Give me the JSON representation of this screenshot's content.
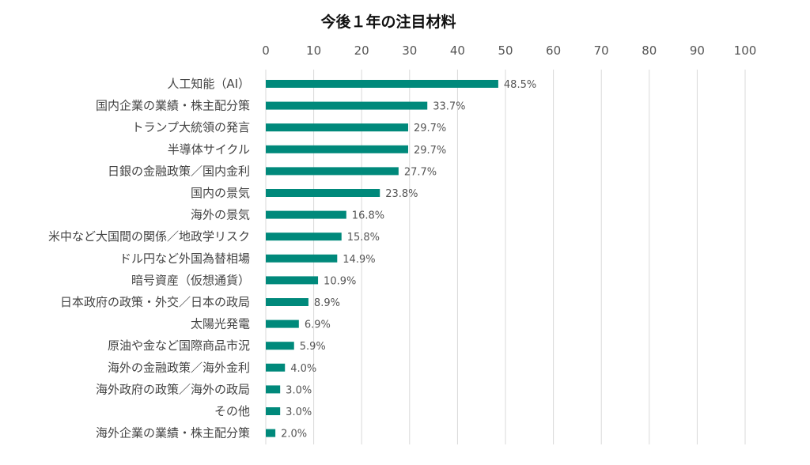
{
  "chart_data": {
    "type": "bar",
    "orientation": "horizontal",
    "title": "今後１年の注目材料",
    "xlabel": "",
    "ylabel": "",
    "xlim": [
      0,
      100
    ],
    "x_ticks": [
      "0",
      "10",
      "20",
      "30",
      "40",
      "50",
      "60",
      "70",
      "80",
      "90",
      "100"
    ],
    "x_tick_values": [
      0,
      10,
      20,
      30,
      40,
      50,
      60,
      70,
      80,
      90,
      100
    ],
    "grid": true,
    "legend": "none",
    "bar_color": "#00897B",
    "categories": [
      "人工知能（AI）",
      "国内企業の業績・株主配分策",
      "トランプ大統領の発言",
      "半導体サイクル",
      "日銀の金融政策／国内金利",
      "国内の景気",
      "海外の景気",
      "米中など大国間の関係／地政学リスク",
      "ドル円など外国為替相場",
      "暗号資産（仮想通貨）",
      "日本政府の政策・外交／日本の政局",
      "太陽光発電",
      "原油や金など国際商品市況",
      "海外の金融政策／海外金利",
      "海外政府の政策／海外の政局",
      "その他",
      "海外企業の業績・株主配分策"
    ],
    "values": [
      48.5,
      33.7,
      29.7,
      29.7,
      27.7,
      23.8,
      16.8,
      15.8,
      14.9,
      10.9,
      8.9,
      6.9,
      5.9,
      4.0,
      3.0,
      3.0,
      2.0
    ],
    "data_labels": [
      "48.5%",
      "33.7%",
      "29.7%",
      "29.7%",
      "27.7%",
      "23.8%",
      "16.8%",
      "15.8%",
      "14.9%",
      "10.9%",
      "8.9%",
      "6.9%",
      "5.9%",
      "4.0%",
      "3.0%",
      "3.0%",
      "2.0%"
    ]
  }
}
